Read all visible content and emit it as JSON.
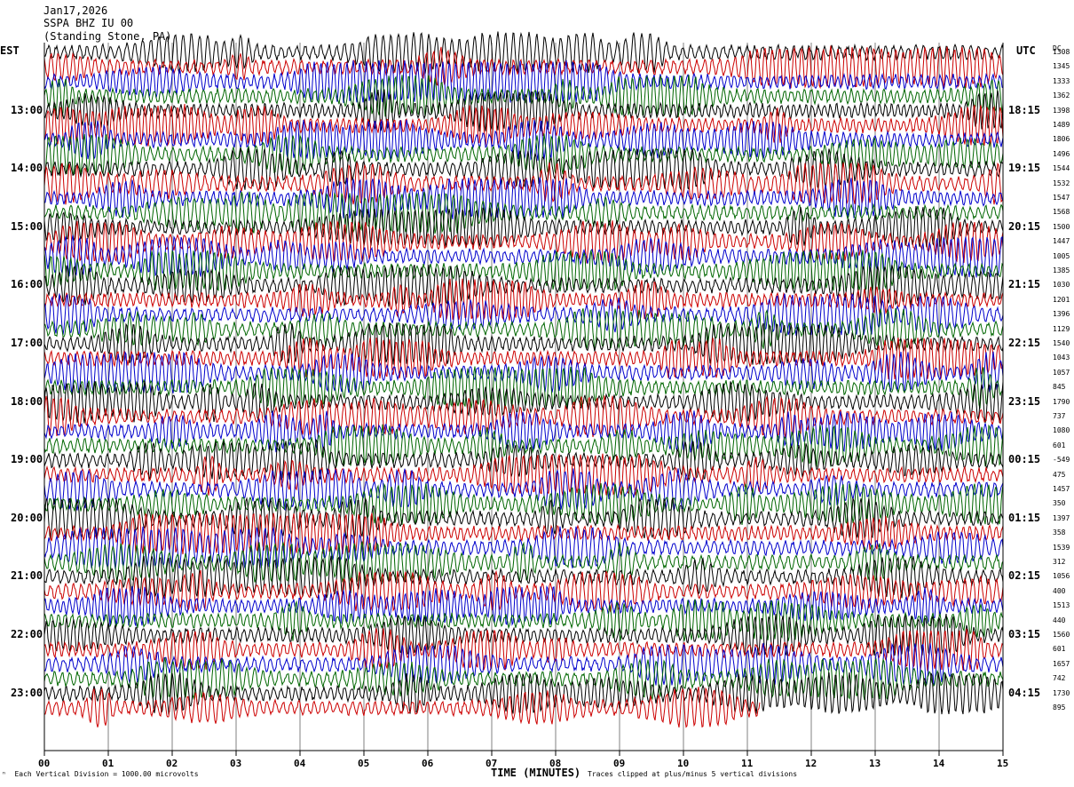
{
  "header": {
    "date": "Jan17,2026",
    "station": "SSPA BHZ IU 00",
    "location": "(Standing Stone, PA)"
  },
  "left_tz": "EST",
  "right_tz": "UTC",
  "dc_header": "DC",
  "footer": {
    "scale_note": "Each Vertical Division = 1000.00 microvolts",
    "clip_note": "Traces clipped at plus/minus 5 vertical divisions",
    "x_title": "TIME (MINUTES)"
  },
  "colors": {
    "trace_cycle": [
      "#000000",
      "#cc0000",
      "#0000cc",
      "#006600"
    ],
    "grid": "#808080",
    "frame": "#000000"
  },
  "chart_data": {
    "type": "line",
    "xlabel": "TIME (MINUTES)",
    "xlim": [
      0,
      15
    ],
    "x_ticks": [
      "00",
      "01",
      "02",
      "03",
      "04",
      "05",
      "06",
      "07",
      "08",
      "09",
      "10",
      "11",
      "12",
      "13",
      "14",
      "15"
    ],
    "rows_per_hour": 4,
    "minutes_per_row": 15,
    "left_hour_labels": [
      "13:00",
      "14:00",
      "15:00",
      "16:00",
      "17:00",
      "18:00",
      "19:00",
      "20:00",
      "21:00",
      "22:00",
      "23:00"
    ],
    "right_hour_labels": [
      "18:15",
      "19:15",
      "20:15",
      "21:15",
      "22:15",
      "23:15",
      "00:15",
      "01:15",
      "02:15",
      "03:15",
      "04:15"
    ],
    "hour_label_first_row": 4,
    "dc_offsets": [
      "1308",
      "1345",
      "1333",
      "1362",
      "1398",
      "1489",
      "1806",
      "1496",
      "1544",
      "1532",
      "1547",
      "1568",
      "1500",
      "1447",
      "1005",
      "1385",
      "1030",
      "1201",
      "1396",
      "1129",
      "1540",
      "1043",
      "1057",
      "845",
      "1790",
      "737",
      "1080",
      "601",
      "-549",
      "475",
      "1457",
      "350",
      "1397",
      "358",
      "1539",
      "312",
      "1056",
      "400",
      "1513",
      "440",
      "1560",
      "601",
      "1657",
      "742",
      "1730",
      "895"
    ],
    "partial_last_row_minutes": 11.2,
    "trace_amplitude_divisions": 0.55
  }
}
